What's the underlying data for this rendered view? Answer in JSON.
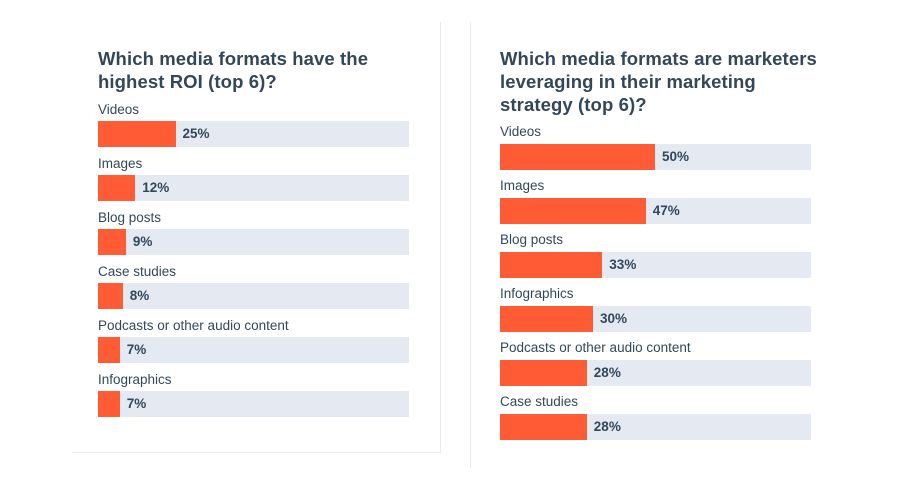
{
  "chart_data": [
    {
      "type": "bar",
      "title": "Which media formats have the highest ROI (top 6)?",
      "categories": [
        "Videos",
        "Images",
        "Blog posts",
        "Case studies",
        "Podcasts or other audio content",
        "Infographics"
      ],
      "values": [
        25,
        12,
        9,
        8,
        7,
        7
      ],
      "value_labels": [
        "25%",
        "12%",
        "9%",
        "8%",
        "7%",
        "7%"
      ],
      "unit": "%",
      "xlim": [
        0,
        100
      ],
      "orientation": "horizontal",
      "bar_color": "#ff5c35",
      "track_color": "#e5eaf2"
    },
    {
      "type": "bar",
      "title": "Which media formats are marketers leveraging in their marketing strategy (top 6)?",
      "categories": [
        "Videos",
        "Images",
        "Blog posts",
        "Infographics",
        "Podcasts or other audio content",
        "Case studies"
      ],
      "values": [
        50,
        47,
        33,
        30,
        28,
        28
      ],
      "value_labels": [
        "50%",
        "47%",
        "33%",
        "30%",
        "28%",
        "28%"
      ],
      "unit": "%",
      "xlim": [
        0,
        100
      ],
      "orientation": "horizontal",
      "bar_color": "#ff5c35",
      "track_color": "#e5eaf2"
    }
  ]
}
